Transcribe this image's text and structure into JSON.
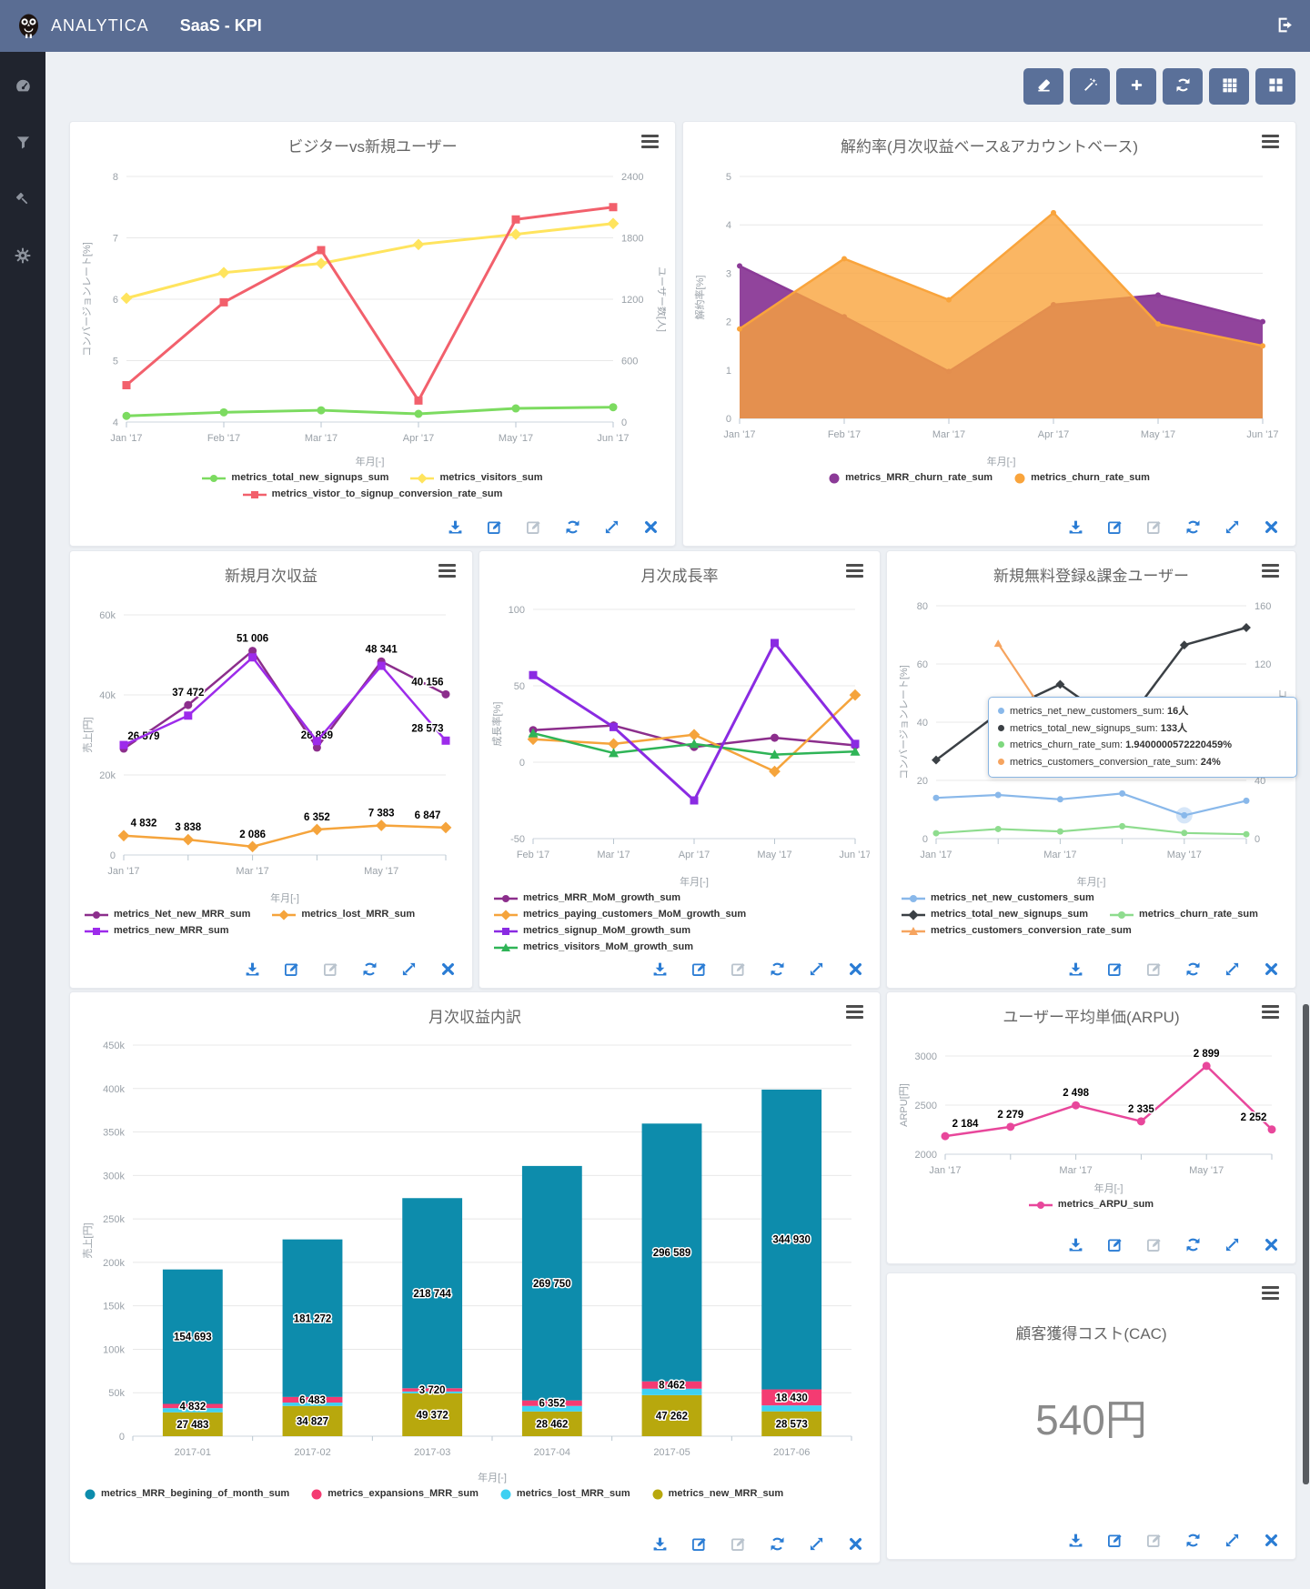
{
  "header": {
    "brand": "ANALYTICA",
    "title": "SaaS - KPI"
  },
  "sidebar_icons": [
    {
      "name": "dashboard"
    },
    {
      "name": "filter"
    },
    {
      "name": "tools"
    },
    {
      "name": "settings"
    }
  ],
  "toolbar_icons": [
    "eraser",
    "magic-wand",
    "add",
    "refresh",
    "grid",
    "layout"
  ],
  "footer_icons": [
    {
      "icon": "download",
      "disabled": false
    },
    {
      "icon": "edit",
      "disabled": false
    },
    {
      "icon": "edit",
      "disabled": true
    },
    {
      "icon": "refresh",
      "disabled": false
    },
    {
      "icon": "expand",
      "disabled": false
    },
    {
      "icon": "close",
      "disabled": false
    }
  ],
  "panels": {
    "visitors_vs_signups": {
      "title": "ビジターvs新規ユーザー",
      "chart_data": {
        "type": "line",
        "x": [
          "Jan '17",
          "Feb '17",
          "Mar '17",
          "Apr '17",
          "May '17",
          "Jun '17"
        ],
        "x_show": [
          0,
          1,
          2,
          3,
          4,
          5
        ],
        "x_label": "年月[-]",
        "y_left": {
          "label": "コンバージョンレート[%]",
          "min": 4,
          "max": 8,
          "ticks": [
            4,
            5,
            6,
            7,
            8
          ],
          "tick_labels": [
            "4",
            "5",
            "6",
            "7",
            "8"
          ]
        },
        "y_right": {
          "label": "ユーザー数[人]",
          "min": 0,
          "max": 2400,
          "ticks": [
            0,
            600,
            1200,
            1800,
            2400
          ],
          "tick_labels": [
            "0",
            "600",
            "1200",
            "1800",
            "2400"
          ]
        },
        "series": [
          {
            "name": "metrics_total_new_signups_sum",
            "color": "#7cdb60",
            "marker": "circle",
            "axis": "right",
            "width": 3,
            "values": [
              60,
              95,
              115,
              80,
              133,
              145
            ]
          },
          {
            "name": "metrics_visitors_sum",
            "color": "#ffe45e",
            "marker": "diamond",
            "axis": "right",
            "width": 3,
            "values": [
              1210,
              1460,
              1550,
              1735,
              1835,
              1940
            ]
          },
          {
            "name": "metrics_vistor_to_signup_conversion_rate_sum",
            "color": "#f2606c",
            "marker": "square",
            "axis": "left",
            "width": 3,
            "values": [
              4.6,
              5.95,
              6.8,
              4.35,
              7.3,
              7.5
            ]
          }
        ]
      }
    },
    "churn": {
      "title": "解約率(月次収益ベース&アカウントベース)",
      "chart_data": {
        "type": "area",
        "x": [
          "Jan '17",
          "Feb '17",
          "Mar '17",
          "Apr '17",
          "May '17",
          "Jun '17"
        ],
        "x_show": [
          0,
          1,
          2,
          3,
          4,
          5
        ],
        "x_label": "年月[-]",
        "y_left": {
          "label": "解約率[%]",
          "min": 0,
          "max": 5,
          "ticks": [
            0,
            1,
            2,
            3,
            4,
            5
          ],
          "tick_labels": [
            "0",
            "1",
            "2",
            "3",
            "4",
            "5"
          ]
        },
        "legend_style": "dot",
        "series": [
          {
            "name": "metrics_MRR_churn_rate_sum",
            "color": "#8b3a97",
            "marker": "circle",
            "ms": 3,
            "axis": "left",
            "area": true,
            "fill_opacity": 0.95,
            "width": 2.5,
            "values": [
              3.15,
              2.1,
              0.97,
              2.35,
              2.55,
              2.0
            ]
          },
          {
            "name": "metrics_churn_rate_sum",
            "color": "#f9a43c",
            "marker": "circle",
            "ms": 3,
            "axis": "left",
            "area": true,
            "fill_opacity": 0.8,
            "width": 2.5,
            "values": [
              1.85,
              3.3,
              2.45,
              4.25,
              1.95,
              1.5
            ]
          }
        ]
      }
    },
    "new_mrr": {
      "title": "新規月次収益",
      "chart_data": {
        "type": "line",
        "x": [
          "Jan '17",
          "Feb '17",
          "Mar '17",
          "Apr '17",
          "May '17",
          "Jun '17"
        ],
        "x_show": [
          0,
          2,
          4
        ],
        "x_label": "年月[-]",
        "y_left": {
          "label": "売上[円]",
          "min": 0,
          "max": 60000,
          "ticks": [
            0,
            20000,
            40000,
            60000
          ],
          "tick_labels": [
            "0",
            "20k",
            "40k",
            "60k"
          ]
        },
        "legend_order": [
          0,
          2,
          1
        ],
        "series": [
          {
            "name": "metrics_Net_new_MRR_sum",
            "color": "#8c2e8c",
            "marker": "circle",
            "axis": "left",
            "width": 2.5,
            "values": [
              26579,
              37472,
              51006,
              26839,
              48341,
              40156
            ],
            "labels": true
          },
          {
            "name": "metrics_new_MRR_sum",
            "color": "#9d2beb",
            "marker": "square",
            "axis": "left",
            "width": 2.5,
            "values": [
              27483,
              34827,
              49372,
              28462,
              47262,
              28573
            ],
            "labels": [
              5
            ]
          },
          {
            "name": "metrics_lost_MRR_sum",
            "color": "#f5a43c",
            "marker": "diamond",
            "axis": "left",
            "width": 2.5,
            "values": [
              4832,
              3838,
              2086,
              6352,
              7383,
              6847
            ],
            "labels": true
          }
        ]
      }
    },
    "mom_growth": {
      "title": "月次成長率",
      "chart_data": {
        "type": "line",
        "x": [
          "Feb '17",
          "Mar '17",
          "Apr '17",
          "May '17",
          "Jun '17"
        ],
        "x_show": [
          0,
          1,
          2,
          3,
          4
        ],
        "x_label": "年月[-]",
        "y_left": {
          "label": "成長率[%]",
          "min": -50,
          "max": 100,
          "ticks": [
            -50,
            0,
            50,
            100
          ],
          "tick_labels": [
            "-50",
            "0",
            "50",
            "100"
          ]
        },
        "legend_order": [
          0,
          1,
          3,
          2
        ],
        "series": [
          {
            "name": "metrics_MRR_MoM_growth_sum",
            "color": "#8c2e8c",
            "marker": "circle",
            "axis": "left",
            "width": 2.5,
            "values": [
              21,
              24,
              10,
              16,
              11
            ]
          },
          {
            "name": "metrics_paying_customers_MoM_growth_sum",
            "color": "#f5a43c",
            "marker": "diamond",
            "axis": "left",
            "width": 2.5,
            "values": [
              15,
              12,
              18,
              -6,
              44
            ]
          },
          {
            "name": "metrics_visitors_MoM_growth_sum",
            "color": "#2fb457",
            "marker": "triangle",
            "axis": "left",
            "width": 2.5,
            "values": [
              19,
              6,
              12,
              5,
              7
            ]
          },
          {
            "name": "metrics_signup_MoM_growth_sum",
            "color": "#8a2be2",
            "marker": "square",
            "axis": "left",
            "width": 3,
            "values": [
              57,
              23,
              -25,
              78,
              12
            ]
          }
        ]
      }
    },
    "signups_paying": {
      "title": "新規無料登録&課金ユーザー",
      "chart_data": {
        "type": "line",
        "x": [
          "Jan '17",
          "Feb '17",
          "Mar '17",
          "Apr '17",
          "May '17",
          "Jun '17"
        ],
        "x_show": [
          0,
          2,
          4
        ],
        "x_label": "年月[-]",
        "y_left": {
          "label": "コンバージョンレート[%]",
          "min": 0,
          "max": 80,
          "ticks": [
            0,
            20,
            40,
            60,
            80
          ],
          "tick_labels": [
            "0",
            "20",
            "40",
            "60",
            "80"
          ]
        },
        "y_right": {
          "label": "ユーザー数[人]",
          "min": 0,
          "max": 160,
          "ticks": [
            0,
            40,
            80,
            120,
            160
          ],
          "tick_labels": [
            "0",
            "40",
            "80",
            "120",
            "160"
          ]
        },
        "series": [
          {
            "name": "metrics_net_new_customers_sum",
            "color": "#89b8ea",
            "marker": "circle",
            "ms": 3.5,
            "axis": "right",
            "width": 2.2,
            "values": [
              28,
              30,
              27,
              31,
              16,
              26
            ],
            "emphasize": [
              4
            ]
          },
          {
            "name": "metrics_total_new_signups_sum",
            "color": "#3b4045",
            "marker": "diamond",
            "ms": 3.5,
            "axis": "right",
            "width": 2.5,
            "values": [
              54,
              86,
              106,
              76,
              133,
              145
            ]
          },
          {
            "name": "metrics_churn_rate_sum",
            "color": "#8edc8e",
            "marker": "circle",
            "ms": 3.5,
            "axis": "left",
            "width": 2.2,
            "values": [
              1.85,
              3.3,
              2.45,
              4.25,
              1.94,
              1.5
            ]
          },
          {
            "name": "metrics_customers_conversion_rate_sum",
            "color": "#f6a45f",
            "marker": "triangle",
            "ms": 3.5,
            "axis": "left",
            "width": 2.2,
            "values": [
              null,
              67,
              35,
              28,
              24,
              26
            ]
          }
        ]
      },
      "tooltip": {
        "items": [
          {
            "label": "metrics_net_new_customers_sum",
            "value": "16人",
            "color": "#89b8ea"
          },
          {
            "label": "metrics_total_new_signups_sum",
            "value": "133人",
            "color": "#3b4045"
          },
          {
            "label": "metrics_churn_rate_sum",
            "value": "1.9400000572220459%",
            "color": "#7ed87e"
          },
          {
            "label": "metrics_customers_conversion_rate_sum",
            "value": "24%",
            "color": "#f6a45f"
          }
        ]
      }
    },
    "mrr_breakdown": {
      "title": "月次収益内訳",
      "chart_data": {
        "type": "stacked_bar",
        "x": [
          "2017-01",
          "2017-02",
          "2017-03",
          "2017-04",
          "2017-05",
          "2017-06"
        ],
        "x_show": [
          0,
          1,
          2,
          3,
          4,
          5
        ],
        "x_label": "年月[-]",
        "y_left": {
          "label": "売上[円]",
          "min": 0,
          "max": 450000,
          "ticks": [
            0,
            50000,
            100000,
            150000,
            200000,
            250000,
            300000,
            350000,
            400000,
            450000
          ],
          "tick_labels": [
            "0",
            "50k",
            "100k",
            "150k",
            "200k",
            "250k",
            "300k",
            "350k",
            "400k",
            "450k"
          ]
        },
        "legend_style": "dot",
        "legend_order": [
          3,
          2,
          1,
          0
        ],
        "series": [
          {
            "name": "metrics_new_MRR_sum",
            "color": "#b8a80d",
            "values": [
              27483,
              34827,
              49372,
              28462,
              47262,
              28573
            ],
            "labels": true
          },
          {
            "name": "metrics_lost_MRR_sum",
            "color": "#3ed0f2",
            "values": [
              4832,
              3838,
              2086,
              6352,
              7383,
              6847
            ],
            "labels": false
          },
          {
            "name": "metrics_expansions_MRR_sum",
            "color": "#f43b72",
            "values": [
              4832,
              6483,
              3720,
              6352,
              8462,
              18430
            ],
            "labels": true
          },
          {
            "name": "metrics_MRR_begining_of_month_sum",
            "color": "#0d8cac",
            "values": [
              154693,
              181272,
              218744,
              269750,
              296589,
              344930
            ],
            "labels": true
          }
        ]
      }
    },
    "arpu": {
      "title": "ユーザー平均単価(ARPU)",
      "chart_data": {
        "type": "line",
        "x": [
          "Jan '17",
          "Feb '17",
          "Mar '17",
          "Apr '17",
          "May '17",
          "Jun '17"
        ],
        "x_show": [
          0,
          2,
          4
        ],
        "x_label": "年月[-]",
        "y_left": {
          "label": "ARPU[円]",
          "min": 2000,
          "max": 3000,
          "ticks": [
            2000,
            2500,
            3000
          ],
          "tick_labels": [
            "2000",
            "2500",
            "3000"
          ]
        },
        "series": [
          {
            "name": "metrics_ARPU_sum",
            "color": "#e8479b",
            "marker": "circle",
            "axis": "left",
            "width": 2.5,
            "values": [
              2184,
              2279,
              2498,
              2335,
              2899,
              2252
            ],
            "labels": true
          }
        ]
      }
    },
    "cac": {
      "title": "顧客獲得コスト(CAC)",
      "value": "540円"
    }
  }
}
